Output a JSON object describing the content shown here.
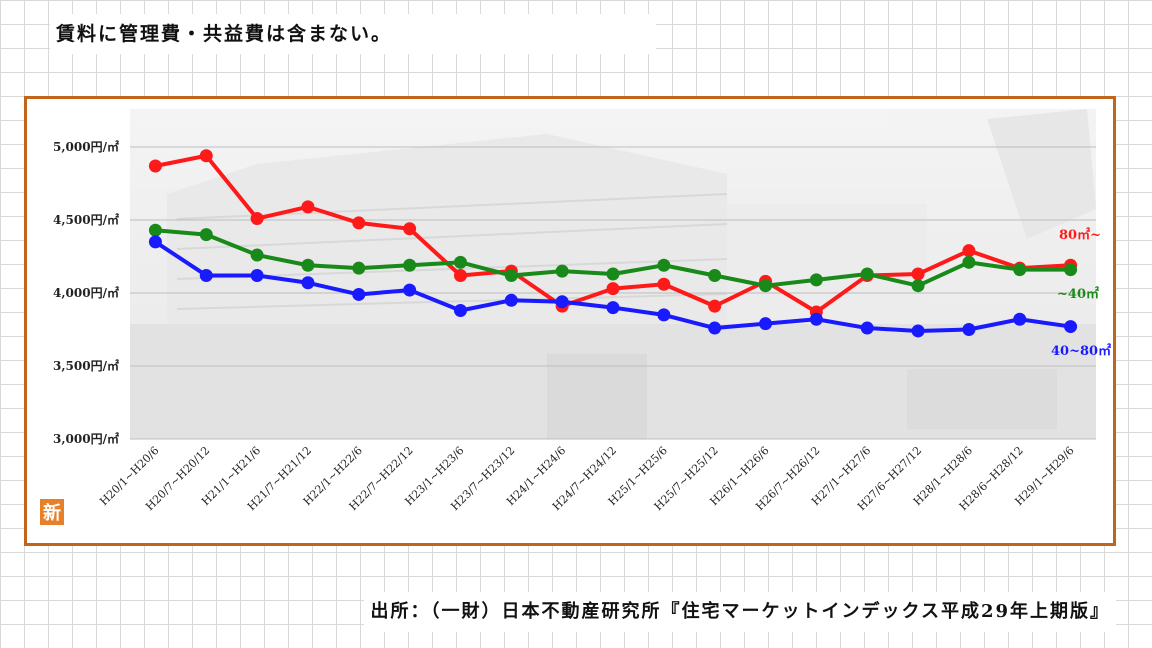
{
  "header": {
    "note": "賃料に管理費・共益費は含まない。"
  },
  "footer": {
    "source": "出所：（一財）日本不動産研究所『住宅マーケットインデックス平成29年上期版』"
  },
  "badge": {
    "label": "新"
  },
  "chart_data": {
    "type": "line",
    "title": "",
    "xlabel": "",
    "ylabel": "",
    "ylim": [
      3000,
      5000
    ],
    "yticks": [
      "5,000円/㎡",
      "4,500円/㎡",
      "4,000円/㎡",
      "3,500円/㎡",
      "3,000円/㎡"
    ],
    "ytick_values": [
      5000,
      4500,
      4000,
      3500,
      3000
    ],
    "grid": true,
    "categories": [
      "H20/1~H20/6",
      "H20/7~H20/12",
      "H21/1~H21/6",
      "H21/7~H21/12",
      "H22/1~H22/6",
      "H22/7~H22/12",
      "H23/1~H23/6",
      "H23/7~H23/12",
      "H24/1~H24/6",
      "H24/7~H24/12",
      "H25/1~H25/6",
      "H25/7~H25/12",
      "H26/1~H26/6",
      "H26/7~H26/12",
      "H27/1~H27/6",
      "H27/6~H27/12",
      "H28/1~H28/6",
      "H28/6~H28/12",
      "H29/1~H29/6"
    ],
    "series": [
      {
        "name": "80㎡~",
        "color": "#ff1a1a",
        "values": [
          4870,
          4940,
          4510,
          4590,
          4480,
          4440,
          4120,
          4150,
          3910,
          4030,
          4060,
          3910,
          4080,
          3870,
          4120,
          4130,
          4290,
          4170,
          4190
        ]
      },
      {
        "name": "~40㎡",
        "color": "#198a19",
        "values": [
          4430,
          4400,
          4260,
          4190,
          4170,
          4190,
          4210,
          4120,
          4150,
          4130,
          4190,
          4120,
          4050,
          4090,
          4130,
          4050,
          4210,
          4160,
          4160
        ]
      },
      {
        "name": "40~80㎡",
        "color": "#1a1aff",
        "values": [
          4350,
          4120,
          4120,
          4070,
          3990,
          4020,
          3880,
          3950,
          3940,
          3900,
          3850,
          3760,
          3790,
          3820,
          3760,
          3740,
          3750,
          3820,
          3770
        ]
      }
    ],
    "legend": "right, beside line ends"
  }
}
